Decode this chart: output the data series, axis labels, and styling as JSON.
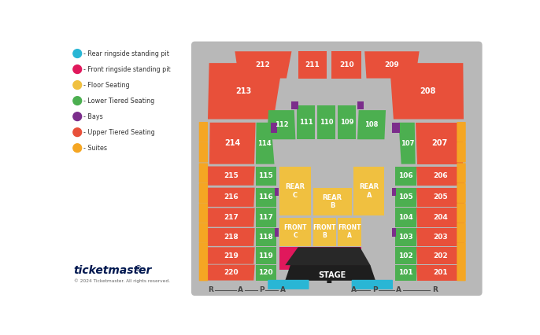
{
  "colors": {
    "red": "#e8503a",
    "green": "#4caf50",
    "yellow": "#f0c040",
    "purple": "#7b2d8b",
    "pink": "#e0185c",
    "blue": "#29b6d5",
    "orange": "#f5a623",
    "gray": "#b8b8b8",
    "stage": "#2d2d2d",
    "white": "#ffffff"
  },
  "legend": [
    {
      "color": "#29b6d5",
      "label": "Rear ringside standing pit"
    },
    {
      "color": "#e0185c",
      "label": "Front ringside standing pit"
    },
    {
      "color": "#f0c040",
      "label": "Floor Seating"
    },
    {
      "color": "#4caf50",
      "label": "Lower Tiered Seating"
    },
    {
      "color": "#7b2d8b",
      "label": "Bays"
    },
    {
      "color": "#e8503a",
      "label": "Upper Tiered Seating"
    },
    {
      "color": "#f5a623",
      "label": "Suites"
    }
  ]
}
